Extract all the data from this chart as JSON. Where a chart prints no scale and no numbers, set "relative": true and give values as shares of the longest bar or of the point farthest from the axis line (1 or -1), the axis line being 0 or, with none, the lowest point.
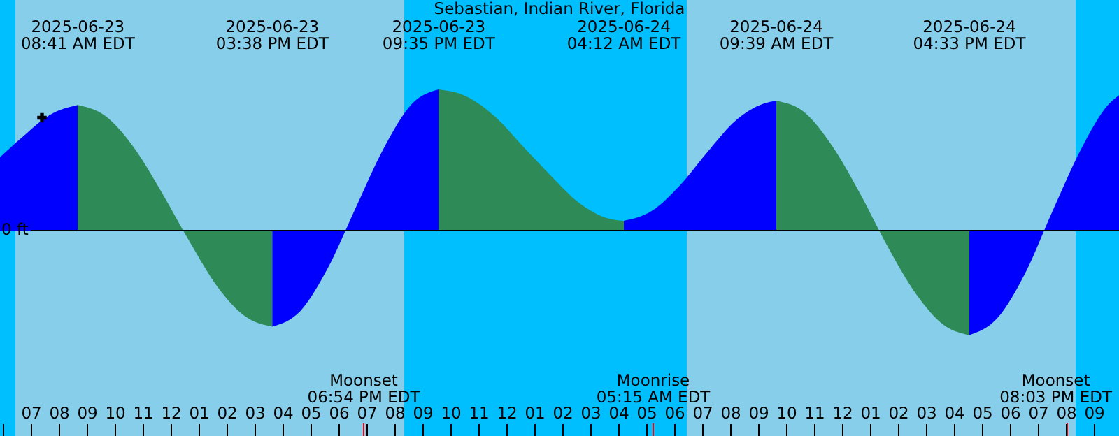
{
  "chart_data": {
    "type": "area",
    "relative": true,
    "title": "Sebastian, Indian River, Florida",
    "xlim": [
      "2025-06-23T05:54",
      "2025-06-24T21:54"
    ],
    "xticks": [
      {
        "value": "2025-06-23T06:00",
        "label": null
      },
      {
        "value": "2025-06-23T07:00",
        "label": "07"
      },
      {
        "value": "2025-06-23T08:00",
        "label": "08"
      },
      {
        "value": "2025-06-23T09:00",
        "label": "09"
      },
      {
        "value": "2025-06-23T10:00",
        "label": "10"
      },
      {
        "value": "2025-06-23T11:00",
        "label": "11"
      },
      {
        "value": "2025-06-23T12:00",
        "label": "12"
      },
      {
        "value": "2025-06-23T13:00",
        "label": "01"
      },
      {
        "value": "2025-06-23T14:00",
        "label": "02"
      },
      {
        "value": "2025-06-23T15:00",
        "label": "03"
      },
      {
        "value": "2025-06-23T16:00",
        "label": "04"
      },
      {
        "value": "2025-06-23T17:00",
        "label": "05"
      },
      {
        "value": "2025-06-23T18:00",
        "label": "06"
      },
      {
        "value": "2025-06-23T19:00",
        "label": "07"
      },
      {
        "value": "2025-06-23T20:00",
        "label": "08"
      },
      {
        "value": "2025-06-23T21:00",
        "label": "09"
      },
      {
        "value": "2025-06-23T22:00",
        "label": "10"
      },
      {
        "value": "2025-06-23T23:00",
        "label": "11"
      },
      {
        "value": "2025-06-24T00:00",
        "label": "12"
      },
      {
        "value": "2025-06-24T01:00",
        "label": "01"
      },
      {
        "value": "2025-06-24T02:00",
        "label": "02"
      },
      {
        "value": "2025-06-24T03:00",
        "label": "03"
      },
      {
        "value": "2025-06-24T04:00",
        "label": "04"
      },
      {
        "value": "2025-06-24T05:00",
        "label": "05"
      },
      {
        "value": "2025-06-24T06:00",
        "label": "06"
      },
      {
        "value": "2025-06-24T07:00",
        "label": "07"
      },
      {
        "value": "2025-06-24T08:00",
        "label": "08"
      },
      {
        "value": "2025-06-24T09:00",
        "label": "09"
      },
      {
        "value": "2025-06-24T10:00",
        "label": "10"
      },
      {
        "value": "2025-06-24T11:00",
        "label": "11"
      },
      {
        "value": "2025-06-24T12:00",
        "label": "12"
      },
      {
        "value": "2025-06-24T13:00",
        "label": "01"
      },
      {
        "value": "2025-06-24T14:00",
        "label": "02"
      },
      {
        "value": "2025-06-24T15:00",
        "label": "03"
      },
      {
        "value": "2025-06-24T16:00",
        "label": "04"
      },
      {
        "value": "2025-06-24T17:00",
        "label": "05"
      },
      {
        "value": "2025-06-24T18:00",
        "label": "06"
      },
      {
        "value": "2025-06-24T19:00",
        "label": "07"
      },
      {
        "value": "2025-06-24T20:00",
        "label": "08"
      },
      {
        "value": "2025-06-24T21:00",
        "label": "09"
      }
    ],
    "series": [
      {
        "color": "#0000ff",
        "x": [
          "2025-06-23T05:54",
          "2025-06-23T06:41",
          "2025-06-23T07:41",
          "2025-06-23T08:41"
        ],
        "values": [
          0.52,
          0.66,
          0.82,
          0.89
        ]
      },
      {
        "color": "#2e8b57",
        "x": [
          "2025-06-23T08:41",
          "2025-06-23T09:41",
          "2025-06-23T10:41",
          "2025-06-23T11:41",
          "2025-06-23T12:41",
          "2025-06-23T13:41",
          "2025-06-23T14:41",
          "2025-06-23T15:38"
        ],
        "values": [
          0.89,
          0.81,
          0.59,
          0.27,
          -0.08,
          -0.4,
          -0.61,
          -0.68
        ]
      },
      {
        "color": "#0000ff",
        "x": [
          "2025-06-23T15:38",
          "2025-06-23T16:38",
          "2025-06-23T17:38",
          "2025-06-23T18:38",
          "2025-06-23T19:38",
          "2025-06-23T20:38",
          "2025-06-23T21:35"
        ],
        "values": [
          -0.68,
          -0.57,
          -0.26,
          0.17,
          0.59,
          0.9,
          1.0
        ]
      },
      {
        "color": "#2e8b57",
        "x": [
          "2025-06-23T21:35",
          "2025-06-23T22:35",
          "2025-06-23T23:35",
          "2025-06-24T00:35",
          "2025-06-24T01:35",
          "2025-06-24T02:35",
          "2025-06-24T03:35",
          "2025-06-24T04:12"
        ],
        "values": [
          1.0,
          0.95,
          0.81,
          0.6,
          0.39,
          0.2,
          0.09,
          0.07
        ]
      },
      {
        "color": "#0000ff",
        "x": [
          "2025-06-24T04:12",
          "2025-06-24T05:12",
          "2025-06-24T06:12",
          "2025-06-24T07:12",
          "2025-06-24T08:12",
          "2025-06-24T09:12",
          "2025-06-24T09:39"
        ],
        "values": [
          0.07,
          0.14,
          0.32,
          0.56,
          0.78,
          0.9,
          0.92
        ]
      },
      {
        "color": "#2e8b57",
        "x": [
          "2025-06-24T09:39",
          "2025-06-24T10:39",
          "2025-06-24T11:39",
          "2025-06-24T12:39",
          "2025-06-24T13:39",
          "2025-06-24T14:39",
          "2025-06-24T15:39",
          "2025-06-24T16:33"
        ],
        "values": [
          0.92,
          0.84,
          0.6,
          0.26,
          -0.12,
          -0.45,
          -0.67,
          -0.74
        ]
      },
      {
        "color": "#0000ff",
        "x": [
          "2025-06-24T16:33",
          "2025-06-24T17:33",
          "2025-06-24T18:33",
          "2025-06-24T19:33",
          "2025-06-24T20:33",
          "2025-06-24T21:33",
          "2025-06-24T21:54"
        ],
        "values": [
          -0.74,
          -0.62,
          -0.3,
          0.15,
          0.58,
          0.9,
          0.96
        ]
      },
      {
        "type": "scatter",
        "marker": "cross",
        "color": "#000000",
        "x": [
          "2025-06-23T07:24"
        ],
        "values": [
          0.8
        ]
      }
    ],
    "bands": [
      {
        "axis": "x",
        "from": "2025-06-23T05:54",
        "to": "2025-06-23T06:27",
        "color": "#00bfff"
      },
      {
        "axis": "x",
        "from": "2025-06-23T06:27",
        "to": "2025-06-23T20:21",
        "color": "#87ceeb"
      },
      {
        "axis": "x",
        "from": "2025-06-23T20:21",
        "to": "2025-06-24T06:27",
        "color": "#00bfff"
      },
      {
        "axis": "x",
        "from": "2025-06-24T06:27",
        "to": "2025-06-24T20:21",
        "color": "#87ceeb"
      },
      {
        "axis": "x",
        "from": "2025-06-24T20:21",
        "to": "2025-06-24T21:54",
        "color": "#00bfff"
      }
    ],
    "ref_lines": [
      {
        "axis": "y",
        "value": 0,
        "label": "0 ft",
        "color": "#000000"
      },
      {
        "axis": "x",
        "value": "2025-06-23T18:54",
        "label": "Moonset\n06:54 PM EDT",
        "color": "#ff0000"
      },
      {
        "axis": "x",
        "value": "2025-06-24T05:15",
        "label": "Moonrise\n05:15 AM EDT",
        "color": "#ff0000"
      },
      {
        "axis": "x",
        "value": "2025-06-24T20:03",
        "label": "Moonset\n08:03 PM EDT",
        "color": "#ff0000"
      }
    ],
    "annotations": [
      "2025-06-23\n08:41 AM EDT",
      "2025-06-23\n03:38 PM EDT",
      "2025-06-23\n09:35 PM EDT",
      "2025-06-24\n04:12 AM EDT",
      "2025-06-24\n09:39 AM EDT",
      "2025-06-24\n04:33 PM EDT"
    ],
    "grid": false
  }
}
